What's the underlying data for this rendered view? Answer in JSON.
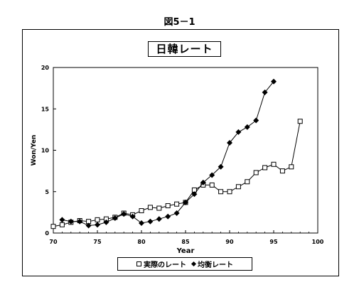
{
  "figure_label": "図5－1",
  "chart_data": {
    "type": "line",
    "title": "日韓レート",
    "xlabel": "Year",
    "ylabel": "Won/Yen",
    "xlim": [
      70,
      100
    ],
    "ylim": [
      0,
      20
    ],
    "x_ticks": [
      "70",
      "75",
      "80",
      "85",
      "90",
      "95",
      "100"
    ],
    "y_ticks": [
      "0",
      "5",
      "10",
      "15",
      "20"
    ],
    "grid": false,
    "legend_position": "bottom",
    "series": [
      {
        "name": "実際のレート",
        "marker": "square-open",
        "color": "#000000",
        "x": [
          70,
          71,
          72,
          73,
          74,
          75,
          76,
          77,
          78,
          79,
          80,
          81,
          82,
          83,
          84,
          85,
          86,
          87,
          88,
          89,
          90,
          91,
          92,
          93,
          94,
          95,
          96,
          97,
          98
        ],
        "y": [
          0.8,
          1.0,
          1.3,
          1.5,
          1.4,
          1.6,
          1.7,
          1.9,
          2.4,
          2.2,
          2.7,
          3.1,
          3.0,
          3.3,
          3.5,
          3.7,
          5.2,
          5.8,
          5.8,
          5.0,
          5.0,
          5.6,
          6.2,
          7.3,
          7.9,
          8.3,
          7.5,
          8.0,
          13.5
        ]
      },
      {
        "name": "均衡レート",
        "marker": "diamond-filled",
        "color": "#000000",
        "x": [
          71,
          72,
          73,
          74,
          75,
          76,
          77,
          78,
          79,
          80,
          81,
          82,
          83,
          84,
          85,
          86,
          87,
          88,
          89,
          90,
          91,
          92,
          93,
          94,
          95
        ],
        "y": [
          1.6,
          1.4,
          1.4,
          0.9,
          1.0,
          1.3,
          1.8,
          2.3,
          2.0,
          1.2,
          1.4,
          1.7,
          2.0,
          2.4,
          3.7,
          4.7,
          6.1,
          7.0,
          8.0,
          10.9,
          12.2,
          12.8,
          13.6,
          17.0,
          18.3
        ]
      }
    ]
  }
}
